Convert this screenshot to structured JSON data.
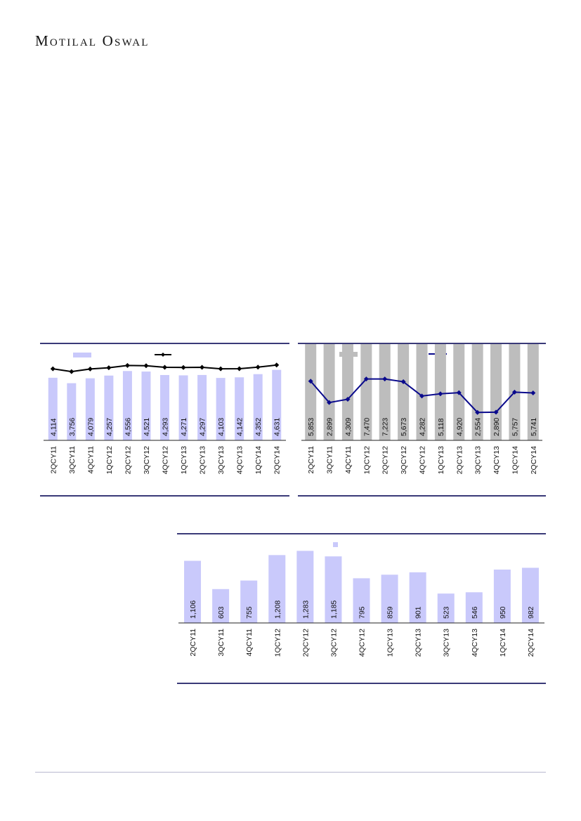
{
  "header": {
    "brand": "Motilal Oswal"
  },
  "colors": {
    "bar_light": "#c9c9fb",
    "bar_grey": "#bdbdbd",
    "line_black": "#000000",
    "line_navy": "#0a0a8c",
    "rule": "#3a3a78"
  },
  "chart_data": [
    {
      "type": "bar",
      "categories": [
        "2QCY11",
        "3QCY11",
        "4QCY11",
        "1QCY12",
        "2QCY12",
        "3QCY12",
        "4QCY12",
        "1QCY13",
        "2QCY13",
        "3QCY13",
        "4QCY13",
        "1QCY14",
        "2QCY14"
      ],
      "series": [
        {
          "kind": "bar",
          "values": [
            4114,
            3756,
            4079,
            4257,
            4556,
            4521,
            4293,
            4271,
            4297,
            4103,
            4142,
            4352,
            4631
          ],
          "labels": [
            "4,114",
            "3,756",
            "4,079",
            "4,257",
            "4,556",
            "4,521",
            "4,293",
            "4,271",
            "4,297",
            "4,103",
            "4,142",
            "4,352",
            "4,631"
          ]
        },
        {
          "kind": "line",
          "values": [
            4700,
            4520,
            4690,
            4770,
            4920,
            4905,
            4800,
            4790,
            4800,
            4700,
            4710,
            4810,
            4950
          ]
        }
      ],
      "ylim": [
        0,
        5400
      ],
      "legend": "top"
    },
    {
      "type": "bar",
      "categories": [
        "2QCY11",
        "3QCY11",
        "4QCY11",
        "1QCY12",
        "2QCY12",
        "3QCY12",
        "4QCY12",
        "1QCY13",
        "2QCY13",
        "3QCY13",
        "4QCY13",
        "1QCY14",
        "2QCY14"
      ],
      "series": [
        {
          "kind": "bar",
          "values": [
            5853,
            2899,
            4309,
            7470,
            7223,
            5673,
            4282,
            5118,
            4920,
            2554,
            2890,
            5757,
            5741
          ],
          "labels": [
            "5,853",
            "2,899",
            "4,309",
            "7,470",
            "7,223",
            "5,673",
            "4,282",
            "5,118",
            "4,920",
            "2,554",
            "2,890",
            "5,757",
            "5,741"
          ]
        },
        {
          "kind": "line",
          "values": [
            10.8,
            6.9,
            7.5,
            11.2,
            11.2,
            10.7,
            8.1,
            8.5,
            8.7,
            5.1,
            5.15,
            8.8,
            8.65
          ]
        }
      ],
      "ylim": [
        0,
        15
      ],
      "legend": "top"
    },
    {
      "type": "bar",
      "categories": [
        "2QCY11",
        "3QCY11",
        "4QCY11",
        "1QCY12",
        "2QCY12",
        "3QCY12",
        "4QCY12",
        "1QCY13",
        "2QCY13",
        "3QCY13",
        "4QCY13",
        "1QCY14",
        "2QCY14"
      ],
      "series": [
        {
          "kind": "bar",
          "values": [
            1106,
            603,
            755,
            1208,
            1283,
            1185,
            795,
            859,
            901,
            523,
            546,
            950,
            982
          ],
          "labels": [
            "1,106",
            "603",
            "755",
            "1,208",
            "1,283",
            "1,185",
            "795",
            "859",
            "901",
            "523",
            "546",
            "950",
            "982"
          ]
        }
      ],
      "ylim": [
        0,
        1400
      ],
      "legend": "top"
    }
  ]
}
